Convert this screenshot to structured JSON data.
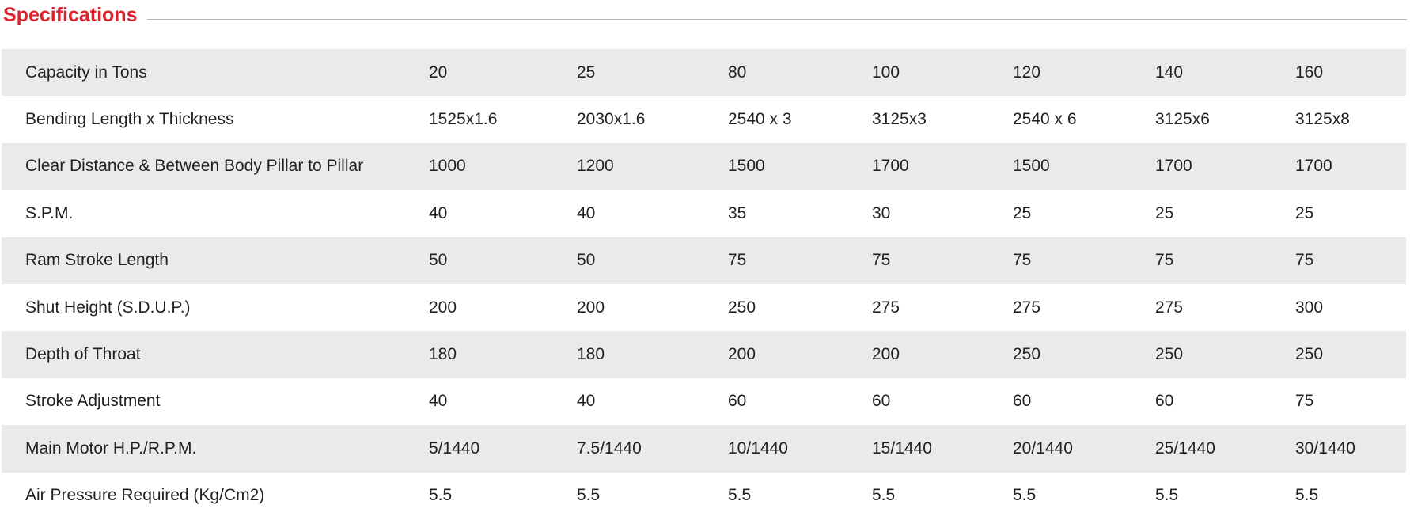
{
  "heading": {
    "title": "Specifications"
  },
  "table": {
    "rows": [
      {
        "label": "Capacity in Tons",
        "values": [
          "20",
          "25",
          "80",
          "100",
          "120",
          "140",
          "160"
        ]
      },
      {
        "label": "Bending Length x Thickness",
        "values": [
          "1525x1.6",
          "2030x1.6",
          "2540 x 3",
          "3125x3",
          "2540 x 6",
          "3125x6",
          "3125x8"
        ]
      },
      {
        "label": "Clear Distance & Between Body Pillar to Pillar",
        "values": [
          "1000",
          "1200",
          "1500",
          "1700",
          "1500",
          "1700",
          "1700"
        ]
      },
      {
        "label": "S.P.M.",
        "values": [
          "40",
          "40",
          "35",
          "30",
          "25",
          "25",
          "25"
        ]
      },
      {
        "label": "Ram Stroke Length",
        "values": [
          "50",
          "50",
          "75",
          "75",
          "75",
          "75",
          "75"
        ]
      },
      {
        "label": "Shut Height (S.D.U.P.)",
        "values": [
          "200",
          "200",
          "250",
          "275",
          "275",
          "275",
          "300"
        ]
      },
      {
        "label": "Depth of Throat",
        "values": [
          "180",
          "180",
          "200",
          "200",
          "250",
          "250",
          "250"
        ]
      },
      {
        "label": "Stroke Adjustment",
        "values": [
          "40",
          "40",
          "60",
          "60",
          "60",
          "60",
          "75"
        ]
      },
      {
        "label": "Main Motor H.P./R.P.M.",
        "values": [
          "5/1440",
          "7.5/1440",
          "10/1440",
          "15/1440",
          "20/1440",
          "25/1440",
          "30/1440"
        ]
      },
      {
        "label": "Air Pressure Required (Kg/Cm2)",
        "values": [
          "5.5",
          "5.5",
          "5.5",
          "5.5",
          "5.5",
          "5.5",
          "5.5"
        ]
      }
    ]
  },
  "colors": {
    "heading_red": "#d9232d",
    "row_shade": "#e9eaea",
    "text": "#231f20",
    "rule": "#b5b5b5"
  }
}
